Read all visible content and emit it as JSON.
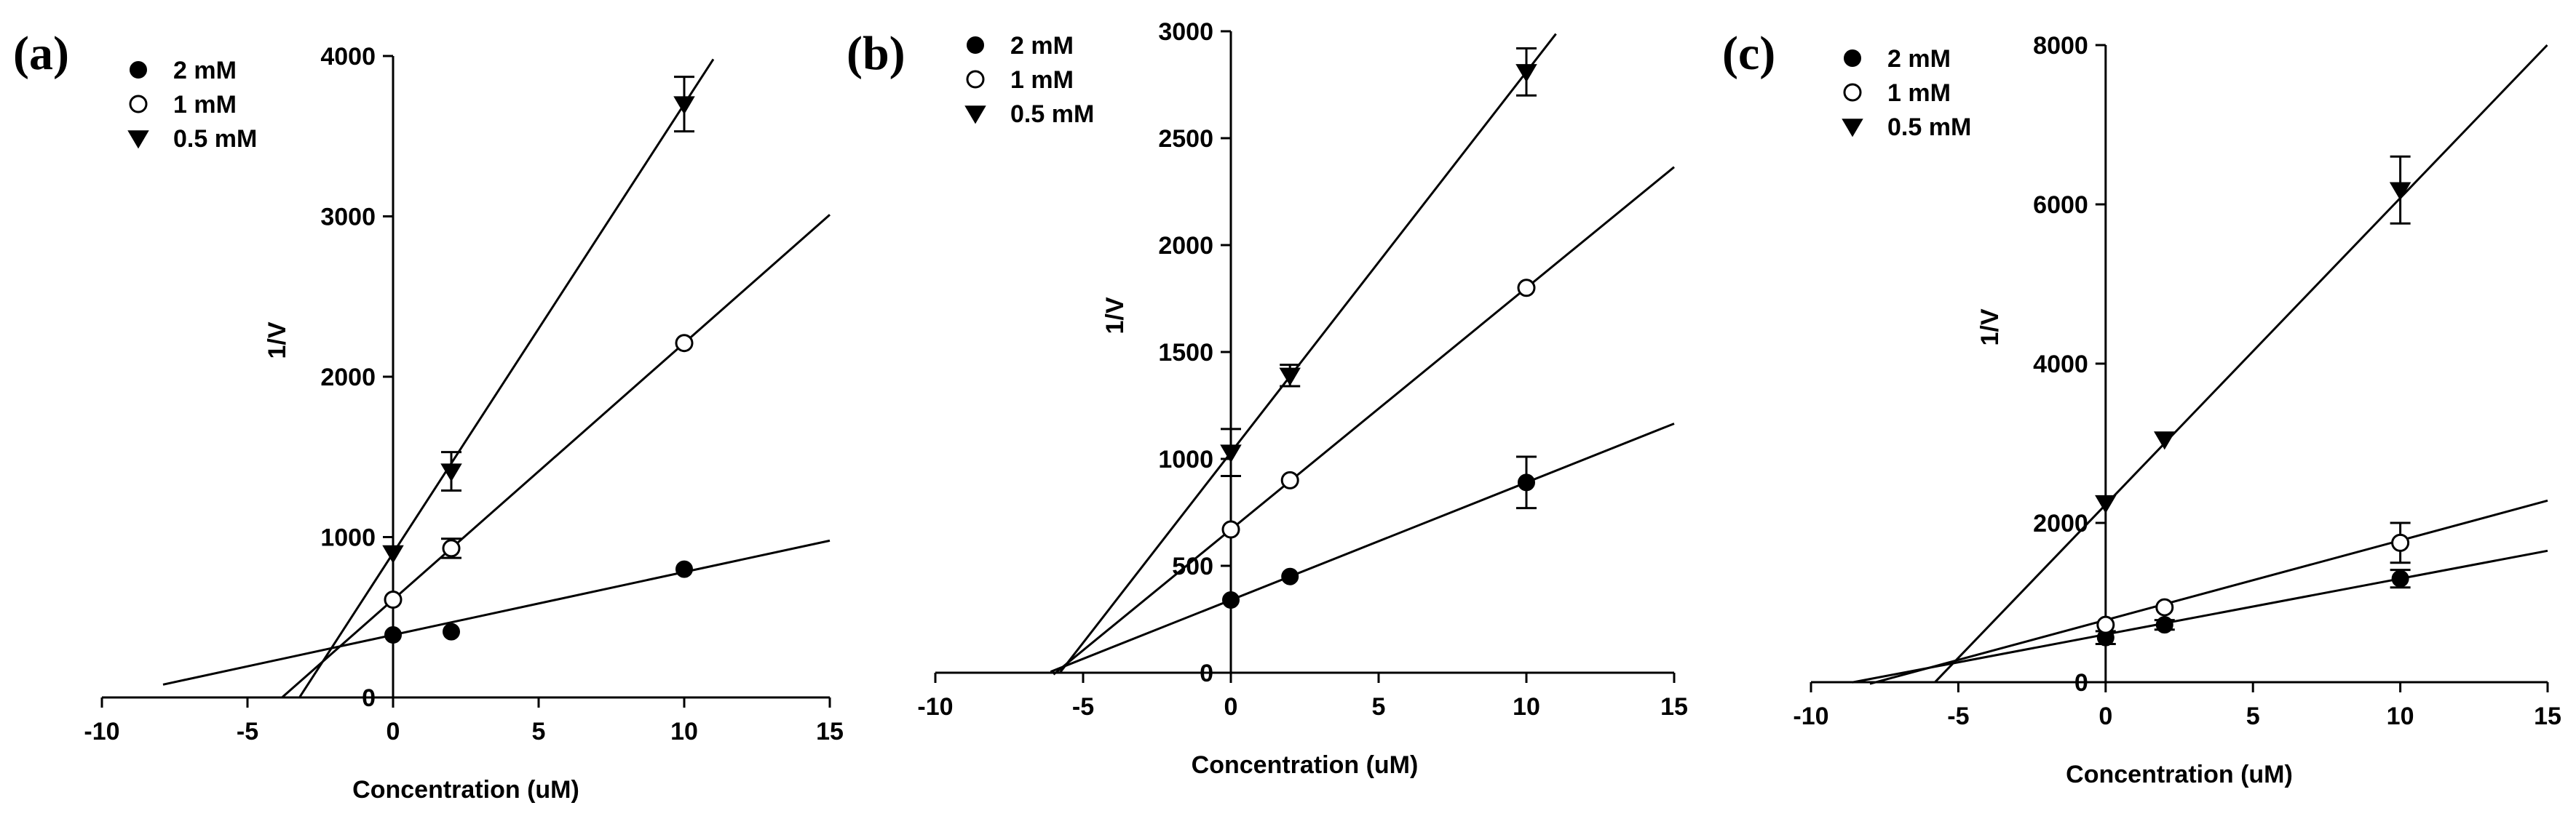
{
  "chart_data": [
    {
      "type": "scatter",
      "panel_label": "(a)",
      "xlabel": "Concentration (uM)",
      "ylabel": "1/V",
      "xlim": [
        -10,
        15
      ],
      "ylim": [
        0,
        4000
      ],
      "xticks": [
        -10,
        -5,
        0,
        5,
        10,
        15
      ],
      "yticks": [
        0,
        1000,
        2000,
        3000,
        4000
      ],
      "x": [
        0,
        2,
        10
      ],
      "legend_position": "top-left",
      "series": [
        {
          "name": "2 mM",
          "marker": "filled-circle",
          "values": [
            390,
            410,
            800
          ],
          "errors": [
            0,
            0,
            0
          ],
          "fit": {
            "slope": 39.2,
            "intercept": 390,
            "x_range": [
              -7.9,
              15
            ]
          }
        },
        {
          "name": "1 mM",
          "marker": "open-circle",
          "values": [
            610,
            930,
            2210
          ],
          "errors": [
            0,
            60,
            0
          ],
          "fit": {
            "slope": 160,
            "intercept": 610,
            "x_range": [
              -3.8,
              15
            ]
          }
        },
        {
          "name": "0.5 mM",
          "marker": "filled-triangle",
          "values": [
            900,
            1410,
            3700
          ],
          "errors": [
            0,
            120,
            170
          ],
          "fit": {
            "slope": 280,
            "intercept": 900,
            "x_range": [
              -3.2,
              11
            ]
          }
        }
      ]
    },
    {
      "type": "scatter",
      "panel_label": "(b)",
      "xlabel": "Concentration (uM)",
      "ylabel": "1/V",
      "xlim": [
        -10,
        15
      ],
      "ylim": [
        0,
        3000
      ],
      "xticks": [
        -10,
        -5,
        0,
        5,
        10,
        15
      ],
      "yticks": [
        0,
        500,
        1000,
        1500,
        2000,
        2500,
        3000
      ],
      "x": [
        0,
        2,
        10
      ],
      "legend_position": "top-left",
      "series": [
        {
          "name": "2 mM",
          "marker": "filled-circle",
          "values": [
            340,
            450,
            890
          ],
          "errors": [
            0,
            0,
            120
          ],
          "fit": {
            "slope": 55,
            "intercept": 340,
            "x_range": [
              -6.1,
              15
            ]
          }
        },
        {
          "name": "1 mM",
          "marker": "open-circle",
          "values": [
            670,
            900,
            1800
          ],
          "errors": [
            0,
            0,
            0
          ],
          "fit": {
            "slope": 113,
            "intercept": 670,
            "x_range": [
              -6.0,
              15
            ]
          }
        },
        {
          "name": "0.5 mM",
          "marker": "filled-triangle",
          "values": [
            1030,
            1390,
            2810
          ],
          "errors": [
            110,
            50,
            110
          ],
          "fit": {
            "slope": 178,
            "intercept": 1030,
            "x_range": [
              -5.8,
              11
            ]
          }
        }
      ]
    },
    {
      "type": "scatter",
      "panel_label": "(c)",
      "xlabel": "Concentration (uM)",
      "ylabel": "1/V",
      "xlim": [
        -10,
        15
      ],
      "ylim": [
        0,
        8000
      ],
      "xticks": [
        -10,
        -5,
        0,
        5,
        10,
        15
      ],
      "yticks": [
        0,
        2000,
        4000,
        6000,
        8000
      ],
      "x": [
        0,
        2,
        10
      ],
      "legend_position": "top-left",
      "series": [
        {
          "name": "2 mM",
          "marker": "filled-circle",
          "values": [
            560,
            720,
            1300
          ],
          "errors": [
            80,
            60,
            110
          ],
          "fit": {
            "slope": 70,
            "intercept": 600,
            "x_range": [
              -8.6,
              15
            ]
          }
        },
        {
          "name": "1 mM",
          "marker": "open-circle",
          "values": [
            720,
            940,
            1750
          ],
          "errors": [
            0,
            0,
            250
          ],
          "fit": {
            "slope": 100,
            "intercept": 780,
            "x_range": [
              -8.0,
              15
            ]
          }
        },
        {
          "name": "0.5 mM",
          "marker": "filled-triangle",
          "values": [
            2250,
            3050,
            6180
          ],
          "errors": [
            0,
            0,
            420
          ],
          "fit": {
            "slope": 385,
            "intercept": 2230,
            "x_range": [
              -5.8,
              15
            ]
          }
        }
      ]
    }
  ]
}
